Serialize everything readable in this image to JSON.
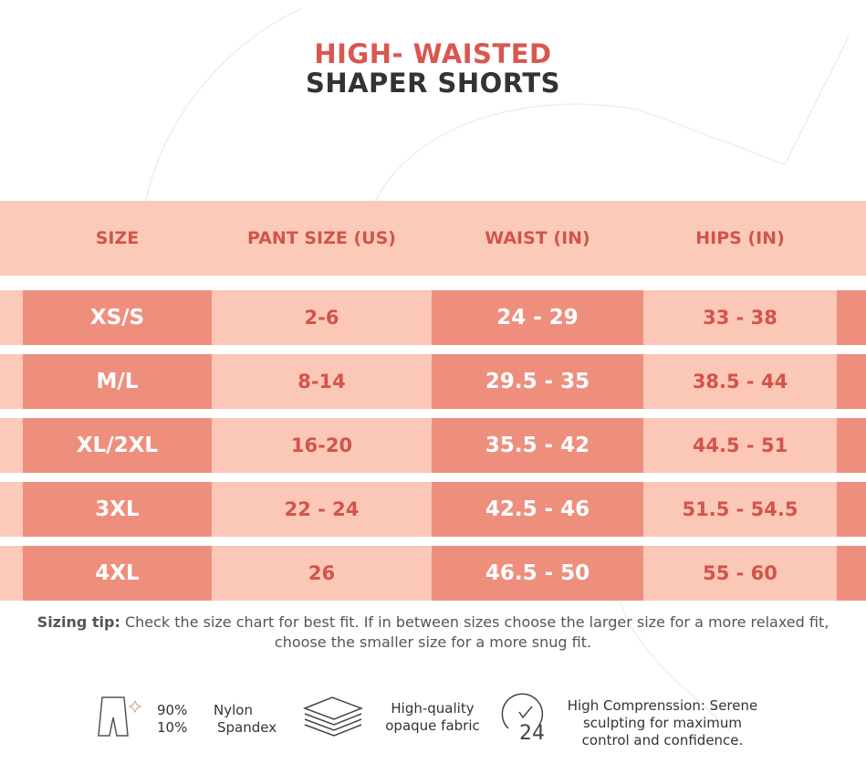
{
  "title": {
    "line1": "HIGH- WAISTED",
    "line2": "SHAPER SHORTS"
  },
  "table": {
    "header": [
      "SIZE",
      "PANT SIZE (US)",
      "WAIST (IN)",
      "HIPS (IN)"
    ],
    "rows": [
      [
        "XS/S",
        "2-6",
        "24 - 29",
        "33 - 38"
      ],
      [
        "M/L",
        "8-14",
        "29.5 - 35",
        "38.5 - 44"
      ],
      [
        "XL/2XL",
        "16-20",
        "35.5 - 42",
        "44.5 - 51"
      ],
      [
        "3XL",
        "22 - 24",
        "42.5 - 46",
        "51.5 - 54.5"
      ],
      [
        "4XL",
        "26",
        "46.5 - 50",
        "55 - 60"
      ]
    ]
  },
  "tip": {
    "label": "Sizing tip:",
    "text": "Check the size chart for best fit. If in between sizes choose the larger size for a more relaxed fit, choose the smaller size for a more snug fit."
  },
  "features": [
    {
      "percents": [
        "90%",
        "10%"
      ],
      "materials": [
        "Nylon",
        "Spandex"
      ]
    },
    {
      "lines": [
        "High-quality",
        "opaque fabric"
      ]
    },
    {
      "icon_label": "24",
      "lines": [
        "High Comprenssion: Serene",
        "sculpting for maximum",
        "control and confidence."
      ]
    }
  ]
}
